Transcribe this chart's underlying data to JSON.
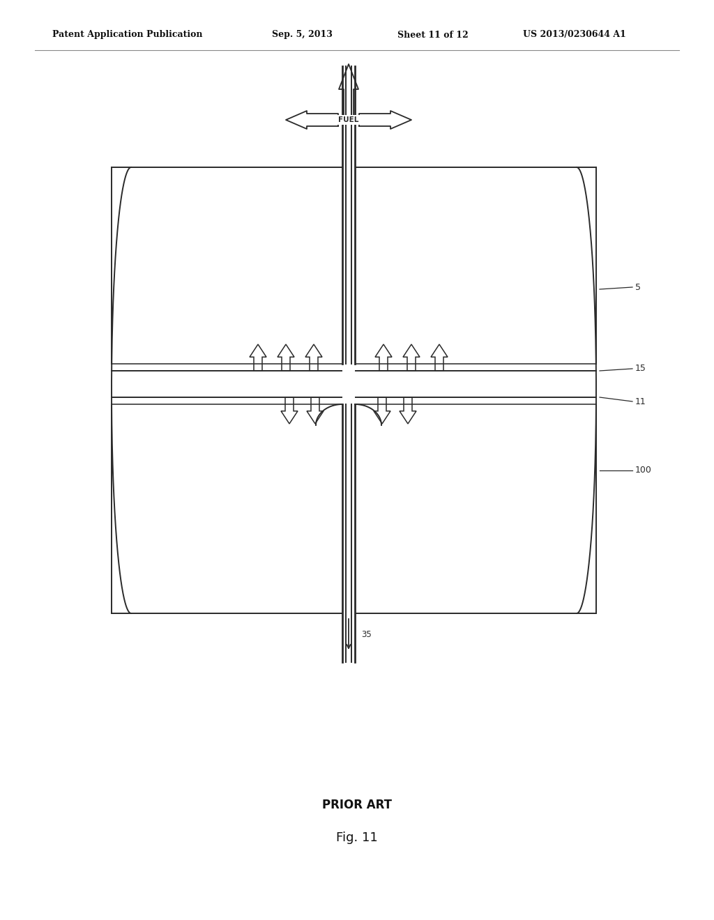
{
  "bg_color": "#ffffff",
  "line_color": "#2a2a2a",
  "header_text": "Patent Application Publication",
  "header_date": "Sep. 5, 2013",
  "header_sheet": "Sheet 11 of 12",
  "header_patent": "US 2013/0230644 A1",
  "caption_prior_art": "PRIOR ART",
  "caption_fig": "Fig. 11",
  "label_fuel": "FUEL",
  "label_5": "5",
  "label_15": "15",
  "label_11": "11",
  "label_100": "100",
  "label_35": "35"
}
